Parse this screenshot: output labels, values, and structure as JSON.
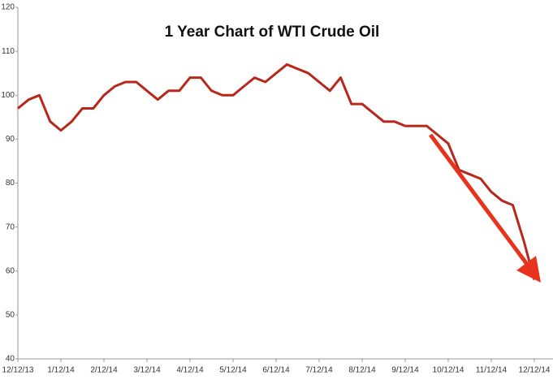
{
  "chart_data": {
    "type": "line",
    "title": "1 Year Chart of WTI Crude Oil",
    "categories": [
      "12/12/13",
      null,
      null,
      null,
      "1/12/14",
      null,
      null,
      null,
      "2/12/14",
      null,
      null,
      null,
      "3/12/14",
      null,
      null,
      null,
      "4/12/14",
      null,
      null,
      null,
      "5/12/14",
      null,
      null,
      null,
      "6/12/14",
      null,
      null,
      null,
      "7/12/14",
      null,
      null,
      null,
      "8/12/14",
      null,
      null,
      null,
      "9/12/14",
      null,
      null,
      null,
      "10/12/14",
      null,
      null,
      null,
      "11/12/14",
      null,
      null,
      null,
      "12/12/14"
    ],
    "series": [
      {
        "name": "WTI Crude Oil",
        "color": "#b8271c",
        "values": [
          97,
          99,
          100,
          94,
          92,
          94,
          97,
          97,
          100,
          102,
          103,
          103,
          101,
          99,
          101,
          101,
          104,
          104,
          101,
          100,
          100,
          102,
          104,
          103,
          105,
          107,
          106,
          105,
          103,
          101,
          104,
          98,
          98,
          96,
          94,
          94,
          93,
          93,
          93,
          91,
          89,
          83,
          82,
          81,
          78,
          76,
          75,
          67,
          58
        ]
      }
    ],
    "ylim": [
      40,
      120
    ],
    "yticks": [
      40,
      50,
      60,
      70,
      80,
      90,
      100,
      110,
      120
    ],
    "grid": false
  }
}
